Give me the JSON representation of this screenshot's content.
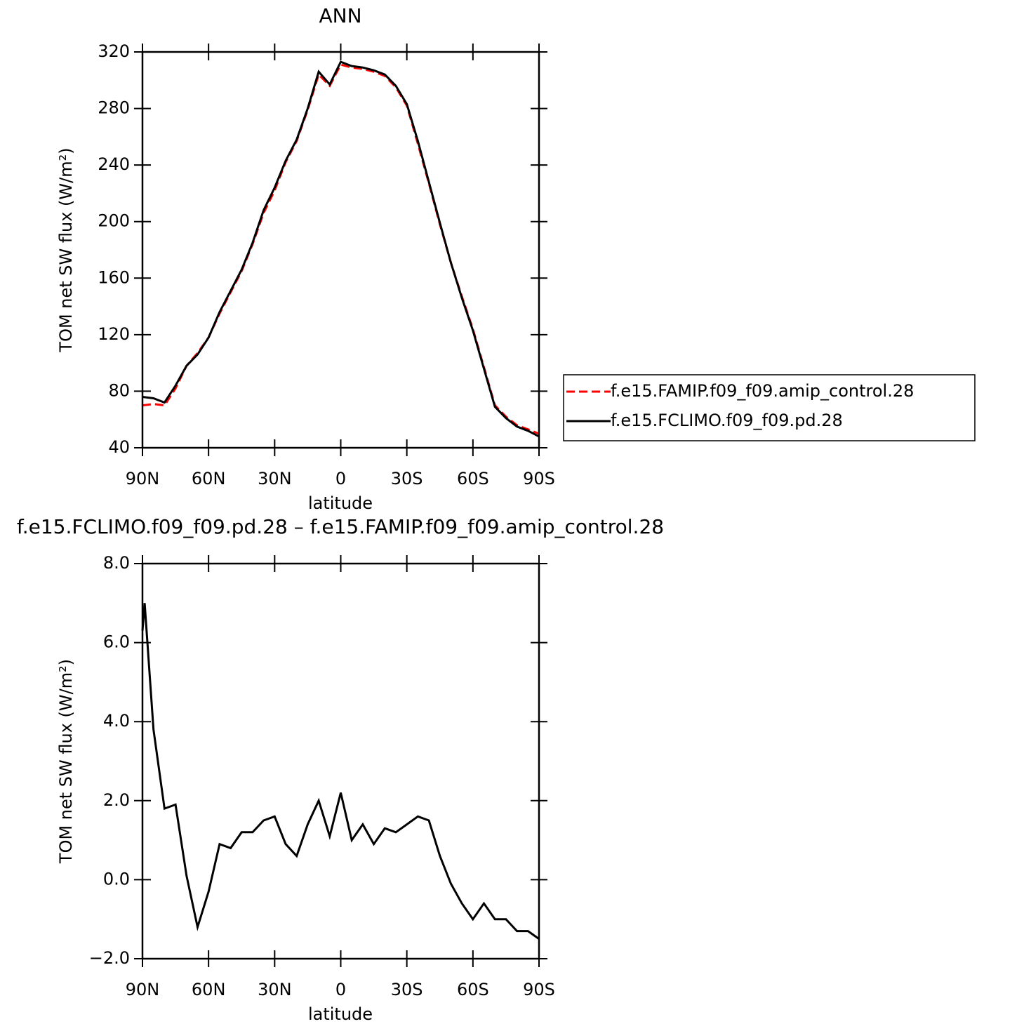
{
  "chart_data": [
    {
      "type": "line",
      "title": "ANN",
      "xlabel": "latitude",
      "ylabel": "TOM net SW flux (W/m²)",
      "x": [
        90,
        85,
        80,
        75,
        70,
        65,
        60,
        55,
        50,
        45,
        40,
        35,
        30,
        25,
        20,
        15,
        10,
        5,
        0,
        -5,
        -10,
        -15,
        -20,
        -25,
        -30,
        -35,
        -40,
        -45,
        -50,
        -55,
        -60,
        -65,
        -70,
        -75,
        -80,
        -85,
        -90
      ],
      "series": [
        {
          "name": "f.e15.FAMIP.f09_f09.amip_control.28",
          "color": "#ff0000",
          "style": "dashed",
          "values": [
            70,
            71,
            70,
            82,
            98,
            107,
            118,
            135,
            150,
            165,
            184,
            206,
            222,
            242,
            257,
            279,
            304,
            296,
            311,
            309,
            308,
            306,
            303,
            295,
            282,
            255,
            227,
            198,
            171,
            147,
            124,
            97,
            70,
            62,
            56,
            53,
            50
          ]
        },
        {
          "name": "f.e15.FCLIMO.f09_f09.pd.28",
          "color": "#000000",
          "style": "solid",
          "values": [
            76,
            75,
            72,
            84,
            98,
            106,
            118,
            136,
            151,
            166,
            185,
            208,
            224,
            243,
            258,
            280,
            306,
            297,
            313,
            310,
            309,
            307,
            304,
            296,
            283,
            257,
            228,
            199,
            171,
            146,
            123,
            96,
            69,
            61,
            55,
            52,
            48
          ]
        }
      ],
      "xlim": [
        90,
        -90
      ],
      "xticks": [
        {
          "value": 90,
          "label": "90N"
        },
        {
          "value": 60,
          "label": "60N"
        },
        {
          "value": 30,
          "label": "30N"
        },
        0,
        {
          "value": -30,
          "label": "30S"
        },
        {
          "value": -60,
          "label": "60S"
        },
        {
          "value": -90,
          "label": "90S"
        }
      ],
      "ylim": [
        40,
        320
      ],
      "yticks": [
        40,
        80,
        120,
        160,
        200,
        240,
        280,
        320
      ],
      "legend": "right"
    },
    {
      "type": "line",
      "title": "f.e15.FCLIMO.f09_f09.pd.28 – f.e15.FAMIP.f09_f09.amip_control.28",
      "xlabel": "latitude",
      "ylabel": "TOM net SW flux (W/m²)",
      "x": [
        90,
        89,
        85,
        80,
        75,
        70,
        65,
        60,
        55,
        50,
        45,
        40,
        35,
        30,
        25,
        20,
        15,
        10,
        5,
        0,
        -5,
        -10,
        -15,
        -20,
        -25,
        -30,
        -35,
        -40,
        -45,
        -50,
        -55,
        -60,
        -65,
        -70,
        -75,
        -80,
        -85,
        -90
      ],
      "series": [
        {
          "color": "#000000",
          "style": "solid",
          "values": [
            6.3,
            7.0,
            3.8,
            1.8,
            1.9,
            0.1,
            -1.2,
            -0.3,
            0.9,
            0.8,
            1.2,
            1.2,
            1.5,
            1.6,
            0.9,
            0.6,
            1.4,
            2.0,
            1.1,
            2.2,
            1.0,
            1.4,
            0.9,
            1.3,
            1.2,
            1.4,
            1.6,
            1.5,
            0.6,
            -0.1,
            -0.6,
            -1.0,
            -0.6,
            -1.0,
            -1.0,
            -1.3,
            -1.3,
            -1.5
          ]
        }
      ],
      "xlim": [
        90,
        -90
      ],
      "xticks": [
        {
          "value": 90,
          "label": "90N"
        },
        {
          "value": 60,
          "label": "60N"
        },
        {
          "value": 30,
          "label": "30N"
        },
        0,
        {
          "value": -30,
          "label": "30S"
        },
        {
          "value": -60,
          "label": "60S"
        },
        {
          "value": -90,
          "label": "90S"
        }
      ],
      "ylim": [
        -2,
        8
      ],
      "yticks": [
        {
          "value": -2,
          "label": "−2.0"
        },
        {
          "value": 0,
          "label": "0.0"
        },
        {
          "value": 2,
          "label": "2.0"
        },
        {
          "value": 4,
          "label": "4.0"
        },
        {
          "value": 6,
          "label": "6.0"
        },
        {
          "value": 8,
          "label": "8.0"
        }
      ]
    }
  ]
}
